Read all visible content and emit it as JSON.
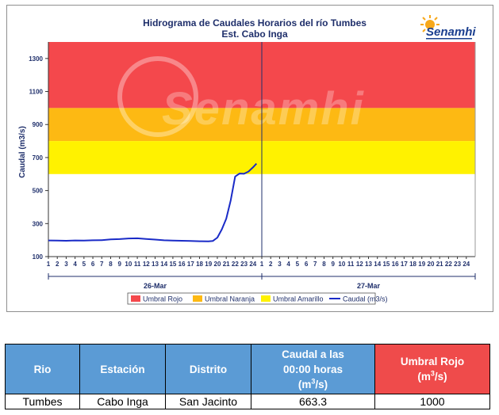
{
  "chart_data": {
    "type": "line",
    "title": "Hidrograma de Caudales Horarios del río Tumbes",
    "subtitle": "Est. Cabo Inga",
    "ylabel": "Caudal  (m3/s)",
    "ylim": [
      100,
      1400
    ],
    "yticks": [
      100,
      300,
      500,
      700,
      900,
      1100,
      1300
    ],
    "xlim": [
      1,
      49
    ],
    "x_tick_labels": [
      "1",
      "2",
      "3",
      "4",
      "5",
      "6",
      "7",
      "8",
      "9",
      "10",
      "11",
      "12",
      "13",
      "14",
      "15",
      "16",
      "17",
      "18",
      "19",
      "20",
      "21",
      "22",
      "23",
      "24",
      "1",
      "2",
      "3",
      "4",
      "5",
      "6",
      "7",
      "8",
      "9",
      "10",
      "11",
      "12",
      "13",
      "14",
      "15",
      "16",
      "17",
      "18",
      "19",
      "20",
      "21",
      "22",
      "23",
      "24"
    ],
    "day_labels": [
      "26-Mar",
      "27-Mar"
    ],
    "bands": [
      {
        "name": "Umbral Rojo",
        "from": 1000,
        "to": 1400,
        "color": "#f4484c"
      },
      {
        "name": "Umbral Naranja",
        "from": 800,
        "to": 1000,
        "color": "#fdb913"
      },
      {
        "name": "Umbral Amarillo",
        "from": 600,
        "to": 800,
        "color": "#fff200"
      }
    ],
    "series": [
      {
        "name": "Caudal (m3/s)",
        "color": "#1a2bc7",
        "x": [
          1,
          2,
          3,
          4,
          5,
          6,
          7,
          8,
          9,
          10,
          11,
          12,
          13,
          14,
          15,
          16,
          17,
          18,
          19,
          19.5,
          20,
          20.5,
          21,
          21.5,
          22,
          22.5,
          23,
          23.5,
          24,
          24.4
        ],
        "y": [
          198,
          197,
          196,
          198,
          197,
          199,
          200,
          204,
          206,
          210,
          211,
          207,
          203,
          199,
          197,
          196,
          195,
          193,
          192,
          195,
          215,
          265,
          330,
          440,
          585,
          603,
          602,
          615,
          640,
          663
        ]
      }
    ],
    "legend": [
      "Umbral Rojo",
      "Umbral Naranja",
      "Umbral Amarillo",
      "Caudal (m3/s)"
    ],
    "legend_position": "bottom",
    "grid": false
  },
  "logo": {
    "text": "Senamhi",
    "watermark": "Senamhi"
  },
  "colors": {
    "axis_text": "#1f2f6b",
    "header_blue": "#5b9bd5",
    "header_red": "#ef4b4b"
  },
  "table": {
    "headers": {
      "rio": "Rio",
      "estacion": "Estación",
      "distrito": "Distrito",
      "caudal_line1": "Caudal a las",
      "caudal_line2": "00:00 horas",
      "caudal_unit_base": "(m",
      "caudal_unit_sup": "3",
      "caudal_unit_end": "/s)",
      "umbral_line1": "Umbral Rojo",
      "umbral_unit_base": "(m",
      "umbral_unit_sup": "3",
      "umbral_unit_end": "/s)"
    },
    "row": {
      "rio": "Tumbes",
      "estacion": "Cabo Inga",
      "distrito": "San Jacinto",
      "caudal": "663.3",
      "umbral_rojo": "1000"
    }
  }
}
